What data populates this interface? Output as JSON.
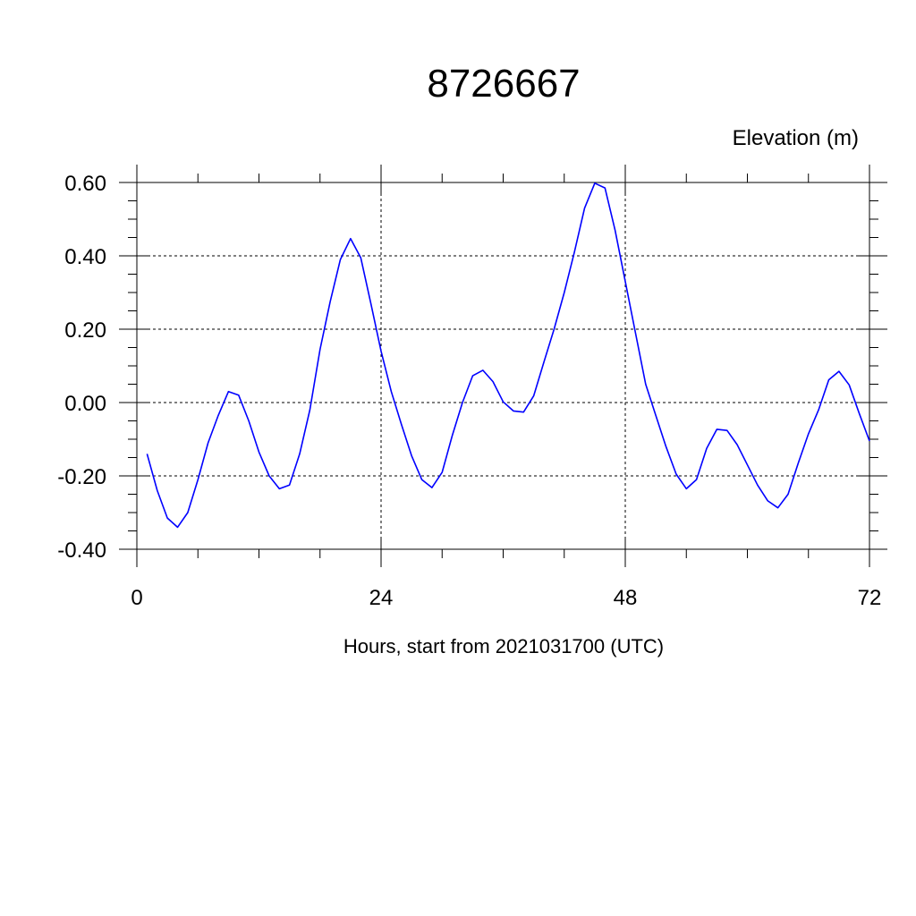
{
  "chart_data": {
    "type": "line",
    "title": "8726667",
    "ylabel": "Elevation (m)",
    "xlabel": "Hours, start from 2021031700 (UTC)",
    "xlim": [
      0,
      72
    ],
    "ylim": [
      -0.4,
      0.6
    ],
    "xticks": [
      0,
      24,
      48,
      72
    ],
    "xtick_labels": [
      "0",
      "24",
      "48",
      "72"
    ],
    "yticks": [
      -0.4,
      -0.2,
      0.0,
      0.2,
      0.4,
      0.6
    ],
    "ytick_labels": [
      "-0.40",
      "-0.20",
      "0.00",
      "0.20",
      "0.40",
      "0.60"
    ],
    "grid": true,
    "series_color": "#0000ff",
    "series": [
      {
        "x": [
          1,
          2,
          3,
          4,
          5,
          6,
          7,
          8,
          9,
          10,
          11,
          12,
          13,
          14,
          15,
          16,
          17,
          18,
          19,
          20,
          21,
          22,
          23,
          24,
          25,
          26,
          27,
          28,
          29,
          30,
          31,
          32,
          33,
          34,
          35,
          36,
          37,
          38,
          39,
          40,
          41,
          42,
          43,
          44,
          45,
          46,
          47,
          48,
          49,
          50,
          51,
          52,
          53,
          54,
          55,
          56,
          57,
          58,
          59,
          60,
          61,
          62,
          63,
          64,
          65,
          66,
          67,
          68,
          69,
          70,
          71,
          72
        ],
        "y": [
          -0.14,
          -0.24,
          -0.315,
          -0.34,
          -0.3,
          -0.21,
          -0.11,
          -0.035,
          0.03,
          0.02,
          -0.05,
          -0.135,
          -0.2,
          -0.235,
          -0.225,
          -0.14,
          -0.02,
          0.145,
          0.275,
          0.39,
          0.447,
          0.395,
          0.27,
          0.14,
          0.03,
          -0.06,
          -0.145,
          -0.21,
          -0.232,
          -0.19,
          -0.09,
          0.0,
          0.073,
          0.088,
          0.057,
          0.002,
          -0.023,
          -0.026,
          0.018,
          0.11,
          0.2,
          0.3,
          0.41,
          0.53,
          0.598,
          0.585,
          0.47,
          0.33,
          0.19,
          0.05,
          -0.035,
          -0.12,
          -0.195,
          -0.235,
          -0.21,
          -0.125,
          -0.073,
          -0.076,
          -0.115,
          -0.17,
          -0.225,
          -0.268,
          -0.287,
          -0.25,
          -0.165,
          -0.085,
          -0.02,
          0.062,
          0.085,
          0.048,
          -0.03,
          -0.105
        ]
      }
    ]
  }
}
